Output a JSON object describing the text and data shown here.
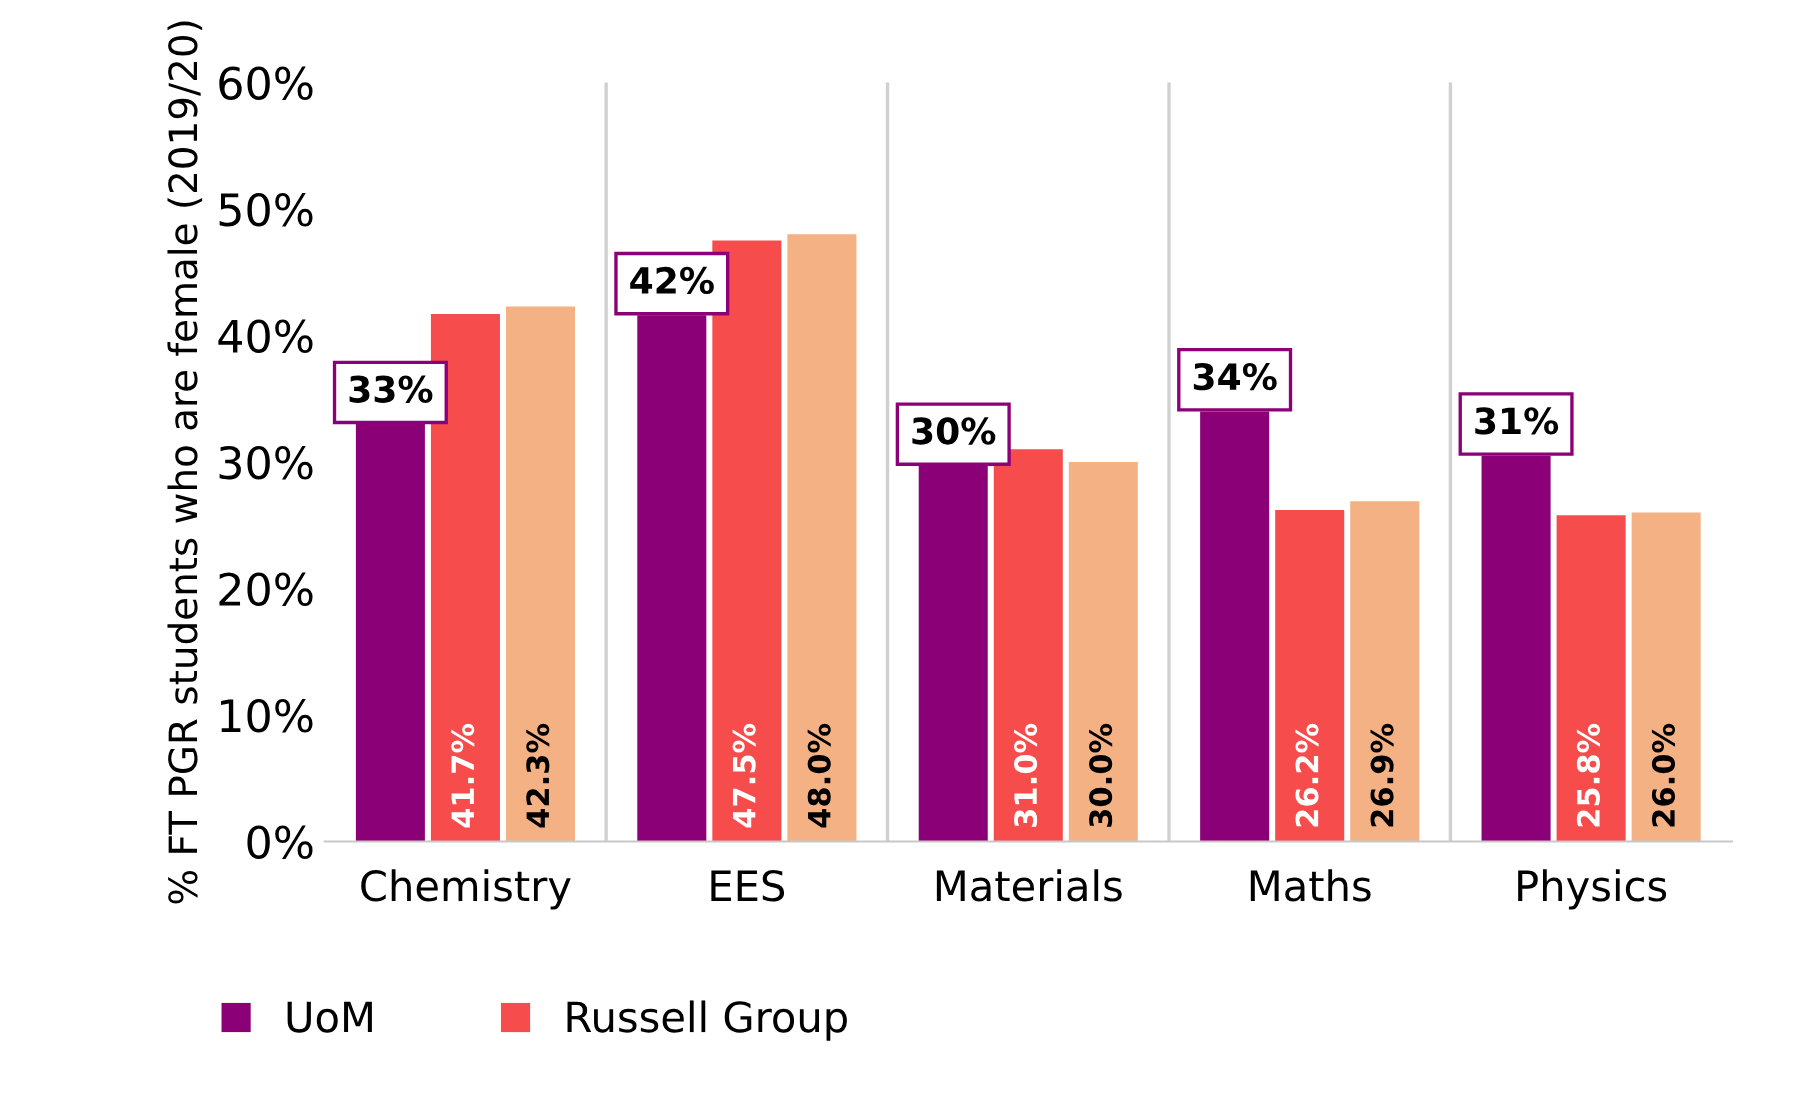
{
  "chart_data": {
    "type": "bar",
    "ylabel": "% FT PGR students who are female (2019/20)",
    "categories": [
      "Chemistry",
      "EES",
      "Materials",
      "Maths",
      "Physics"
    ],
    "series": [
      {
        "name": "UoM",
        "color": "#8b0077",
        "values": [
          33.0,
          41.6,
          29.7,
          34.0,
          30.5
        ],
        "value_labels": [
          "33%",
          "42%",
          "30%",
          "34%",
          "31%"
        ]
      },
      {
        "name": "Russell Group",
        "color": "#f64c4c",
        "values": [
          41.7,
          47.5,
          31.0,
          26.2,
          25.8
        ],
        "value_labels": [
          "41.7%",
          "47.5%",
          "31.0%",
          "26.2%",
          "25.8%"
        ]
      },
      {
        "color": "#f4b183",
        "values": [
          42.3,
          48.0,
          30.0,
          26.9,
          26.0
        ],
        "value_labels": [
          "42.3%",
          "48.0%",
          "30.0%",
          "26.9%",
          "26.0%"
        ]
      }
    ],
    "ylim": [
      0,
      60
    ],
    "yticks": [
      {
        "value": 0,
        "label": "0%"
      },
      {
        "value": 10,
        "label": "10%"
      },
      {
        "value": 20,
        "label": "20%"
      },
      {
        "value": 30,
        "label": "30%"
      },
      {
        "value": 40,
        "label": "40%"
      },
      {
        "value": 50,
        "label": "50%"
      },
      {
        "value": 60,
        "label": "60%"
      }
    ],
    "grid": "x",
    "legend": "bottom"
  }
}
